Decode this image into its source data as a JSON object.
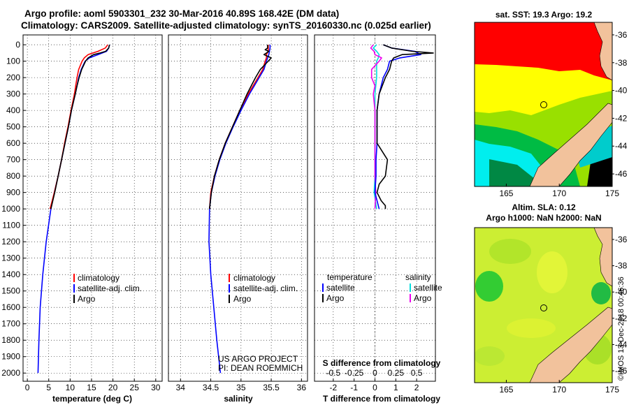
{
  "title_line1": "Argo profile: aoml 5903301_232 30-Mar-2016 40.89S 168.42E (DM data)",
  "title_line2": "Climatology: CARS2009. Satellite-adjusted climatology: synTS_20160330.nc (0.025d earlier)",
  "map_sst_title": "sat. SST: 19.3 Argo: 19.2",
  "map_sla_title1": "Altim. SLA: 0.12",
  "map_sla_title2": "Argo h1000: NaN h2000: NaN",
  "credit_line1": "US ARGO PROJECT",
  "credit_line2": "PI: DEAN ROEMMICH",
  "watermark": "©IMOS 13-Dec-2018 00:46:36",
  "colors": {
    "climatology": "#ff0000",
    "satellite": "#0000ff",
    "argo": "#000000",
    "sat_sal": "#00dddd",
    "argo_sal": "#ee00ee"
  },
  "chart_data": [
    {
      "type": "line",
      "xlabel": "temperature (deg C)",
      "ylabel": "",
      "xlim": [
        -1,
        31.5
      ],
      "ylim": [
        2050,
        -60
      ],
      "xticks": [
        "0",
        "5",
        "10",
        "15",
        "20",
        "25",
        "30"
      ],
      "yticks": [
        "0",
        "100",
        "200",
        "300",
        "400",
        "500",
        "600",
        "700",
        "800",
        "900",
        "1000",
        "1100",
        "1200",
        "1300",
        "1400",
        "1500",
        "1600",
        "1700",
        "1800",
        "1900",
        "2000"
      ],
      "grid": true,
      "legend": [
        "climatology",
        "satellite-adj. clim.",
        "Argo"
      ],
      "series": [
        {
          "name": "climatology",
          "depth": [
            0,
            20,
            40,
            60,
            80,
            100,
            150,
            200,
            250,
            300,
            400,
            500,
            600,
            700,
            800,
            900,
            1000
          ],
          "values": [
            18.8,
            18.2,
            16.5,
            14.2,
            13.3,
            12.8,
            12.0,
            11.6,
            11.3,
            11.0,
            10.2,
            9.5,
            8.7,
            8.0,
            7.2,
            6.3,
            5.3
          ]
        },
        {
          "name": "satellite-adj. clim.",
          "depth": [
            0,
            20,
            40,
            60,
            80,
            100,
            150,
            200,
            250,
            300,
            400,
            500,
            600,
            700,
            800,
            900,
            1000,
            1200,
            1400,
            1600,
            1800,
            2000
          ],
          "values": [
            19.2,
            19.0,
            18.5,
            16.5,
            14.5,
            13.5,
            12.6,
            12.0,
            11.6,
            11.2,
            10.3,
            9.6,
            8.8,
            8.0,
            7.2,
            6.3,
            5.5,
            4.4,
            3.6,
            3.0,
            2.7,
            2.5
          ]
        },
        {
          "name": "Argo",
          "depth": [
            0,
            20,
            40,
            50,
            60,
            80,
            100,
            150,
            200,
            250,
            300,
            400,
            500,
            600,
            700,
            800,
            900,
            1000
          ],
          "values": [
            19.2,
            19.0,
            18.3,
            17.0,
            15.5,
            14.2,
            13.6,
            12.7,
            12.1,
            11.6,
            11.2,
            10.3,
            9.6,
            8.8,
            8.0,
            7.2,
            6.4,
            5.5
          ]
        }
      ]
    },
    {
      "type": "line",
      "xlabel": "salinity",
      "ylabel": "",
      "xlim": [
        33.8,
        36.1
      ],
      "ylim": [
        2050,
        -60
      ],
      "xticks": [
        "34",
        "34.5",
        "35",
        "35.5",
        "36"
      ],
      "grid": true,
      "legend": [
        "climatology",
        "satellite-adj. clim.",
        "Argo"
      ],
      "series": [
        {
          "name": "climatology",
          "depth": [
            0,
            20,
            40,
            60,
            80,
            100,
            150,
            200,
            250,
            300,
            400,
            500,
            600,
            700,
            800,
            900,
            1000
          ],
          "values": [
            35.45,
            35.45,
            35.45,
            35.42,
            35.42,
            35.4,
            35.36,
            35.28,
            35.2,
            35.12,
            34.98,
            34.86,
            34.74,
            34.64,
            34.56,
            34.5,
            34.48
          ]
        },
        {
          "name": "satellite-adj. clim.",
          "depth": [
            0,
            20,
            40,
            60,
            80,
            100,
            150,
            200,
            250,
            300,
            400,
            500,
            600,
            700,
            800,
            900,
            1000,
            1200,
            1400,
            1600,
            1800,
            2000
          ],
          "values": [
            35.48,
            35.48,
            35.47,
            35.46,
            35.44,
            35.42,
            35.38,
            35.3,
            35.22,
            35.14,
            35.0,
            34.87,
            34.75,
            34.65,
            34.57,
            34.51,
            34.48,
            34.47,
            34.5,
            34.55,
            34.6,
            34.66
          ]
        },
        {
          "name": "Argo",
          "depth": [
            0,
            20,
            30,
            40,
            50,
            60,
            80,
            100,
            150,
            200,
            250,
            300,
            400,
            500,
            600,
            700,
            800,
            900,
            1000
          ],
          "values": [
            35.44,
            35.44,
            35.4,
            35.46,
            35.42,
            35.38,
            35.5,
            35.45,
            35.32,
            35.24,
            35.17,
            35.1,
            34.98,
            34.86,
            34.74,
            34.64,
            34.56,
            34.51,
            34.48
          ]
        }
      ]
    },
    {
      "type": "line",
      "xlabel": "T difference from climatology",
      "label_s": "S difference from climatology",
      "xlim": [
        -2.9,
        2.9
      ],
      "ylim": [
        2050,
        -60
      ],
      "xticks_T": [
        "-2",
        "-1",
        "0",
        "1",
        "2"
      ],
      "xticks_S": [
        "-0.5",
        "-0.25",
        "0",
        "0.25",
        "0.5"
      ],
      "grid": true,
      "legend_t_header": "temperature",
      "legend_s_header": "salinity",
      "legend_t": [
        "satellite",
        "Argo"
      ],
      "legend_s": [
        "satellite",
        "Argo"
      ],
      "series": [
        {
          "name": "temperature satellite",
          "depth": [
            0,
            20,
            40,
            60,
            80,
            100,
            150,
            200,
            300,
            400,
            500,
            600,
            700,
            800,
            900,
            1000
          ],
          "values": [
            0.4,
            0.8,
            1.9,
            2.2,
            1.2,
            0.7,
            0.6,
            0.4,
            0.2,
            0.1,
            0.1,
            0.1,
            0.05,
            0.05,
            0.0,
            0.2
          ]
        },
        {
          "name": "temperature Argo",
          "depth": [
            0,
            20,
            40,
            50,
            60,
            80,
            100,
            150,
            200,
            300,
            400,
            500,
            600,
            700,
            800,
            850,
            900,
            950,
            980,
            1000
          ],
          "values": [
            0.4,
            0.8,
            1.8,
            2.8,
            1.3,
            0.9,
            0.8,
            0.7,
            0.5,
            0.2,
            0.1,
            0.1,
            0.1,
            0.6,
            0.5,
            0.2,
            0.1,
            0.3,
            0.5,
            0.5
          ]
        },
        {
          "name": "salinity satellite",
          "depth": [
            0,
            20,
            40,
            60,
            80,
            100,
            200,
            300,
            400,
            500,
            600,
            700,
            800,
            900,
            1000
          ],
          "values": [
            0.02,
            -0.02,
            0.02,
            0.05,
            0.04,
            0.02,
            0.02,
            0.0,
            0.0,
            0.0,
            0.0,
            0.0,
            0.0,
            -0.01,
            0.02
          ]
        },
        {
          "name": "salinity Argo",
          "depth": [
            0,
            20,
            40,
            60,
            80,
            100,
            150,
            200,
            250,
            300,
            400,
            500,
            600,
            700,
            800,
            900,
            1000
          ],
          "values": [
            -0.02,
            -0.05,
            -0.01,
            0.0,
            0.08,
            0.05,
            -0.04,
            -0.04,
            0.0,
            -0.02,
            0.0,
            0.0,
            0.0,
            0.0,
            0.0,
            0.01,
            0.0
          ]
        }
      ]
    }
  ],
  "map_sst": {
    "lon_ticks": [
      "165",
      "170",
      "175"
    ],
    "lat_ticks": [
      "-36",
      "-38",
      "-40",
      "-42",
      "-44",
      "-46"
    ]
  },
  "map_sla": {
    "lon_ticks": [
      "165",
      "170",
      "175"
    ],
    "lat_ticks": [
      "-36",
      "-38",
      "-40",
      "-42",
      "-44",
      "-46"
    ]
  }
}
